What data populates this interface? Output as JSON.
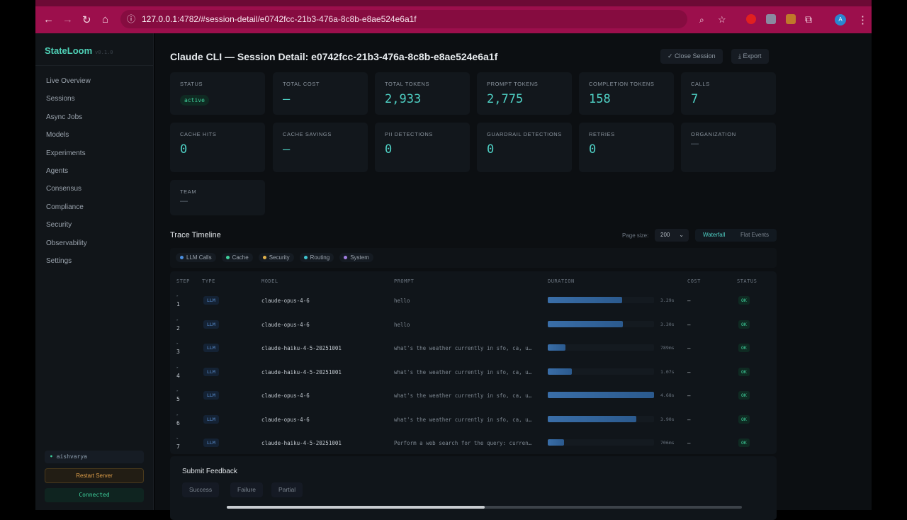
{
  "browser": {
    "url_host": "127.0.0.1",
    "url_rest": ":4782/#session-detail/e0742fcc-21b3-476a-8c8b-e8ae524e6a1f",
    "profile_initial": "A"
  },
  "sidebar": {
    "brand": "StateLoom",
    "version": "v0.1.0",
    "items": [
      "Live Overview",
      "Sessions",
      "Async Jobs",
      "Models",
      "Experiments",
      "Agents",
      "Consensus",
      "Compliance",
      "Security",
      "Observability",
      "Settings"
    ],
    "user": "aishvarya",
    "restart": "Restart Server",
    "connection": "Connected"
  },
  "header": {
    "title": "Claude CLI — Session Detail: e0742fcc-21b3-476a-8c8b-e8ae524e6a1f",
    "close_session": "Close Session",
    "export": "Export"
  },
  "stats": [
    {
      "label": "STATUS",
      "badge": "active"
    },
    {
      "label": "TOTAL COST",
      "value": "—"
    },
    {
      "label": "TOTAL TOKENS",
      "value": "2,933"
    },
    {
      "label": "PROMPT TOKENS",
      "value": "2,775"
    },
    {
      "label": "COMPLETION TOKENS",
      "value": "158"
    },
    {
      "label": "CALLS",
      "value": "7"
    },
    {
      "label": "CACHE HITS",
      "value": "0"
    },
    {
      "label": "CACHE SAVINGS",
      "value": "—"
    },
    {
      "label": "PII DETECTIONS",
      "value": "0"
    },
    {
      "label": "GUARDRAIL DETECTIONS",
      "value": "0"
    },
    {
      "label": "RETRIES",
      "value": "0"
    },
    {
      "label": "ORGANIZATION",
      "dim": "—"
    },
    {
      "label": "TEAM",
      "dim": "—"
    }
  ],
  "timeline": {
    "title": "Trace Timeline",
    "page_size_label": "Page size:",
    "page_size": "200",
    "views": [
      "Waterfall",
      "Flat Events"
    ],
    "active_view": "Waterfall",
    "legend": [
      {
        "label": "LLM Calls",
        "color": "#4a8fe0"
      },
      {
        "label": "Cache",
        "color": "#3fd09c"
      },
      {
        "label": "Security",
        "color": "#e0b04a"
      },
      {
        "label": "Routing",
        "color": "#3fc4d0"
      },
      {
        "label": "System",
        "color": "#a07ee0"
      }
    ],
    "columns": [
      "STEP",
      "TYPE",
      "MODEL",
      "PROMPT",
      "DURATION",
      "COST",
      "STATUS"
    ],
    "rows": [
      {
        "step": "1",
        "type": "LLM",
        "model": "claude-opus-4-6",
        "prompt": "hello",
        "duration": "3.29s",
        "duration_ms": 3290,
        "cost": "—",
        "status": "OK"
      },
      {
        "step": "2",
        "type": "LLM",
        "model": "claude-opus-4-6",
        "prompt": "hello",
        "duration": "3.30s",
        "duration_ms": 3300,
        "cost": "—",
        "status": "OK"
      },
      {
        "step": "3",
        "type": "LLM",
        "model": "claude-haiku-4-5-20251001",
        "prompt": "what's the weather currently in sfo, ca, u…",
        "duration": "789ms",
        "duration_ms": 789,
        "cost": "—",
        "status": "OK"
      },
      {
        "step": "4",
        "type": "LLM",
        "model": "claude-haiku-4-5-20251001",
        "prompt": "what's the weather currently in sfo, ca, u…",
        "duration": "1.07s",
        "duration_ms": 1070,
        "cost": "—",
        "status": "OK"
      },
      {
        "step": "5",
        "type": "LLM",
        "model": "claude-opus-4-6",
        "prompt": "what's the weather currently in sfo, ca, u…",
        "duration": "4.68s",
        "duration_ms": 4680,
        "cost": "—",
        "status": "OK"
      },
      {
        "step": "6",
        "type": "LLM",
        "model": "claude-opus-4-6",
        "prompt": "what's the weather currently in sfo, ca, u…",
        "duration": "3.90s",
        "duration_ms": 3900,
        "cost": "—",
        "status": "OK"
      },
      {
        "step": "7",
        "type": "LLM",
        "model": "claude-haiku-4-5-20251001",
        "prompt": "Perform a web search for the query: curren…",
        "duration": "706ms",
        "duration_ms": 706,
        "cost": "—",
        "status": "OK"
      }
    ]
  },
  "feedback": {
    "title": "Submit Feedback",
    "options": [
      "Success",
      "Failure",
      "Partial"
    ],
    "score_fraction": 0.5
  }
}
